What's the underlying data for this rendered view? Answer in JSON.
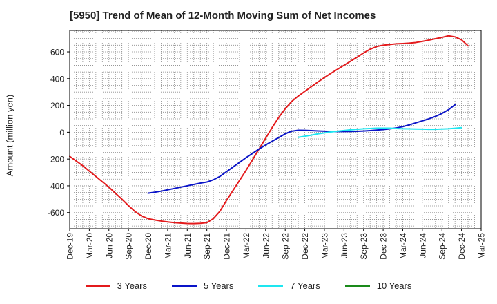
{
  "chart_data": {
    "type": "line",
    "title": "[5950]  Trend of Mean of 12-Month Moving Sum of Net Incomes",
    "xlabel": "",
    "ylabel": "Amount (million yen)",
    "ylim": [
      -720,
      760
    ],
    "yticks": [
      600,
      400,
      200,
      0,
      -200,
      -400,
      -600
    ],
    "x_tick_labels": [
      "Dec-19",
      "Mar-20",
      "Jun-20",
      "Sep-20",
      "Dec-20",
      "Mar-21",
      "Jun-21",
      "Sep-21",
      "Dec-21",
      "Mar-22",
      "Jun-22",
      "Sep-22",
      "Dec-22",
      "Mar-23",
      "Jun-23",
      "Sep-23",
      "Dec-23",
      "Mar-24",
      "Jun-24",
      "Sep-24",
      "Dec-24",
      "Mar-25"
    ],
    "grid": true,
    "legend": "bottom",
    "series": [
      {
        "name": "3 Years",
        "color": "#e31a1c",
        "points": [
          [
            "Dec-19",
            -180
          ],
          [
            "Jan-20",
            -215
          ],
          [
            "Feb-20",
            -250
          ],
          [
            "Mar-20",
            -290
          ],
          [
            "Apr-20",
            -330
          ],
          [
            "May-20",
            -370
          ],
          [
            "Jun-20",
            -410
          ],
          [
            "Jul-20",
            -455
          ],
          [
            "Aug-20",
            -500
          ],
          [
            "Sep-20",
            -548
          ],
          [
            "Oct-20",
            -592
          ],
          [
            "Nov-20",
            -625
          ],
          [
            "Dec-20",
            -645
          ],
          [
            "Jan-21",
            -655
          ],
          [
            "Feb-21",
            -663
          ],
          [
            "Mar-21",
            -670
          ],
          [
            "Apr-21",
            -675
          ],
          [
            "May-21",
            -678
          ],
          [
            "Jun-21",
            -681
          ],
          [
            "Jul-21",
            -682
          ],
          [
            "Aug-21",
            -680
          ],
          [
            "Sep-21",
            -675
          ],
          [
            "Oct-21",
            -645
          ],
          [
            "Nov-21",
            -590
          ],
          [
            "Dec-21",
            -510
          ],
          [
            "Jan-22",
            -435
          ],
          [
            "Feb-22",
            -360
          ],
          [
            "Mar-22",
            -285
          ],
          [
            "Apr-22",
            -205
          ],
          [
            "May-22",
            -125
          ],
          [
            "Jun-22",
            -45
          ],
          [
            "Jul-22",
            35
          ],
          [
            "Aug-22",
            110
          ],
          [
            "Sep-22",
            175
          ],
          [
            "Oct-22",
            230
          ],
          [
            "Nov-22",
            270
          ],
          [
            "Dec-22",
            305
          ],
          [
            "Jan-23",
            340
          ],
          [
            "Feb-23",
            375
          ],
          [
            "Mar-23",
            408
          ],
          [
            "Apr-23",
            440
          ],
          [
            "May-23",
            470
          ],
          [
            "Jun-23",
            500
          ],
          [
            "Jul-23",
            530
          ],
          [
            "Aug-23",
            560
          ],
          [
            "Sep-23",
            592
          ],
          [
            "Oct-23",
            620
          ],
          [
            "Nov-23",
            640
          ],
          [
            "Dec-23",
            650
          ],
          [
            "Jan-24",
            655
          ],
          [
            "Feb-24",
            660
          ],
          [
            "Mar-24",
            662
          ],
          [
            "Apr-24",
            665
          ],
          [
            "May-24",
            670
          ],
          [
            "Jun-24",
            678
          ],
          [
            "Jul-24",
            688
          ],
          [
            "Aug-24",
            698
          ],
          [
            "Sep-24",
            708
          ],
          [
            "Oct-24",
            720
          ],
          [
            "Nov-24",
            712
          ],
          [
            "Dec-24",
            690
          ],
          [
            "Jan-25",
            645
          ]
        ]
      },
      {
        "name": "5 Years",
        "color": "#0a14c8",
        "points": [
          [
            "Dec-20",
            -455
          ],
          [
            "Jan-21",
            -448
          ],
          [
            "Feb-21",
            -440
          ],
          [
            "Mar-21",
            -430
          ],
          [
            "Apr-21",
            -420
          ],
          [
            "May-21",
            -410
          ],
          [
            "Jun-21",
            -400
          ],
          [
            "Jul-21",
            -390
          ],
          [
            "Aug-21",
            -380
          ],
          [
            "Sep-21",
            -372
          ],
          [
            "Oct-21",
            -355
          ],
          [
            "Nov-21",
            -330
          ],
          [
            "Dec-21",
            -295
          ],
          [
            "Jan-22",
            -260
          ],
          [
            "Feb-22",
            -225
          ],
          [
            "Mar-22",
            -190
          ],
          [
            "Apr-22",
            -158
          ],
          [
            "May-22",
            -125
          ],
          [
            "Jun-22",
            -95
          ],
          [
            "Jul-22",
            -68
          ],
          [
            "Aug-22",
            -40
          ],
          [
            "Sep-22",
            -12
          ],
          [
            "Oct-22",
            8
          ],
          [
            "Nov-22",
            15
          ],
          [
            "Dec-22",
            14
          ],
          [
            "Jan-23",
            12
          ],
          [
            "Feb-23",
            10
          ],
          [
            "Mar-23",
            8
          ],
          [
            "Apr-23",
            6
          ],
          [
            "May-23",
            5
          ],
          [
            "Jun-23",
            5
          ],
          [
            "Jul-23",
            6
          ],
          [
            "Aug-23",
            7
          ],
          [
            "Sep-23",
            9
          ],
          [
            "Oct-23",
            12
          ],
          [
            "Nov-23",
            16
          ],
          [
            "Dec-23",
            20
          ],
          [
            "Jan-24",
            25
          ],
          [
            "Feb-24",
            32
          ],
          [
            "Mar-24",
            42
          ],
          [
            "Apr-24",
            55
          ],
          [
            "May-24",
            70
          ],
          [
            "Jun-24",
            85
          ],
          [
            "Jul-24",
            100
          ],
          [
            "Aug-24",
            118
          ],
          [
            "Sep-24",
            140
          ],
          [
            "Oct-24",
            168
          ],
          [
            "Nov-24",
            205
          ]
        ]
      },
      {
        "name": "7 Years",
        "color": "#1ee6f0",
        "points": [
          [
            "Nov-22",
            -38
          ],
          [
            "Dec-22",
            -30
          ],
          [
            "Jan-23",
            -22
          ],
          [
            "Feb-23",
            -12
          ],
          [
            "Mar-23",
            -5
          ],
          [
            "Apr-23",
            2
          ],
          [
            "May-23",
            8
          ],
          [
            "Jun-23",
            13
          ],
          [
            "Jul-23",
            18
          ],
          [
            "Aug-23",
            22
          ],
          [
            "Sep-23",
            26
          ],
          [
            "Oct-23",
            28
          ],
          [
            "Nov-23",
            30
          ],
          [
            "Dec-23",
            30
          ],
          [
            "Jan-24",
            30
          ],
          [
            "Feb-24",
            28
          ],
          [
            "Mar-24",
            26
          ],
          [
            "Apr-24",
            25
          ],
          [
            "May-24",
            24
          ],
          [
            "Jun-24",
            23
          ],
          [
            "Jul-24",
            22
          ],
          [
            "Aug-24",
            22
          ],
          [
            "Sep-24",
            24
          ],
          [
            "Oct-24",
            26
          ],
          [
            "Nov-24",
            30
          ],
          [
            "Dec-24",
            34
          ]
        ]
      },
      {
        "name": "10 Years",
        "color": "#1a8a1a",
        "points": []
      }
    ]
  }
}
